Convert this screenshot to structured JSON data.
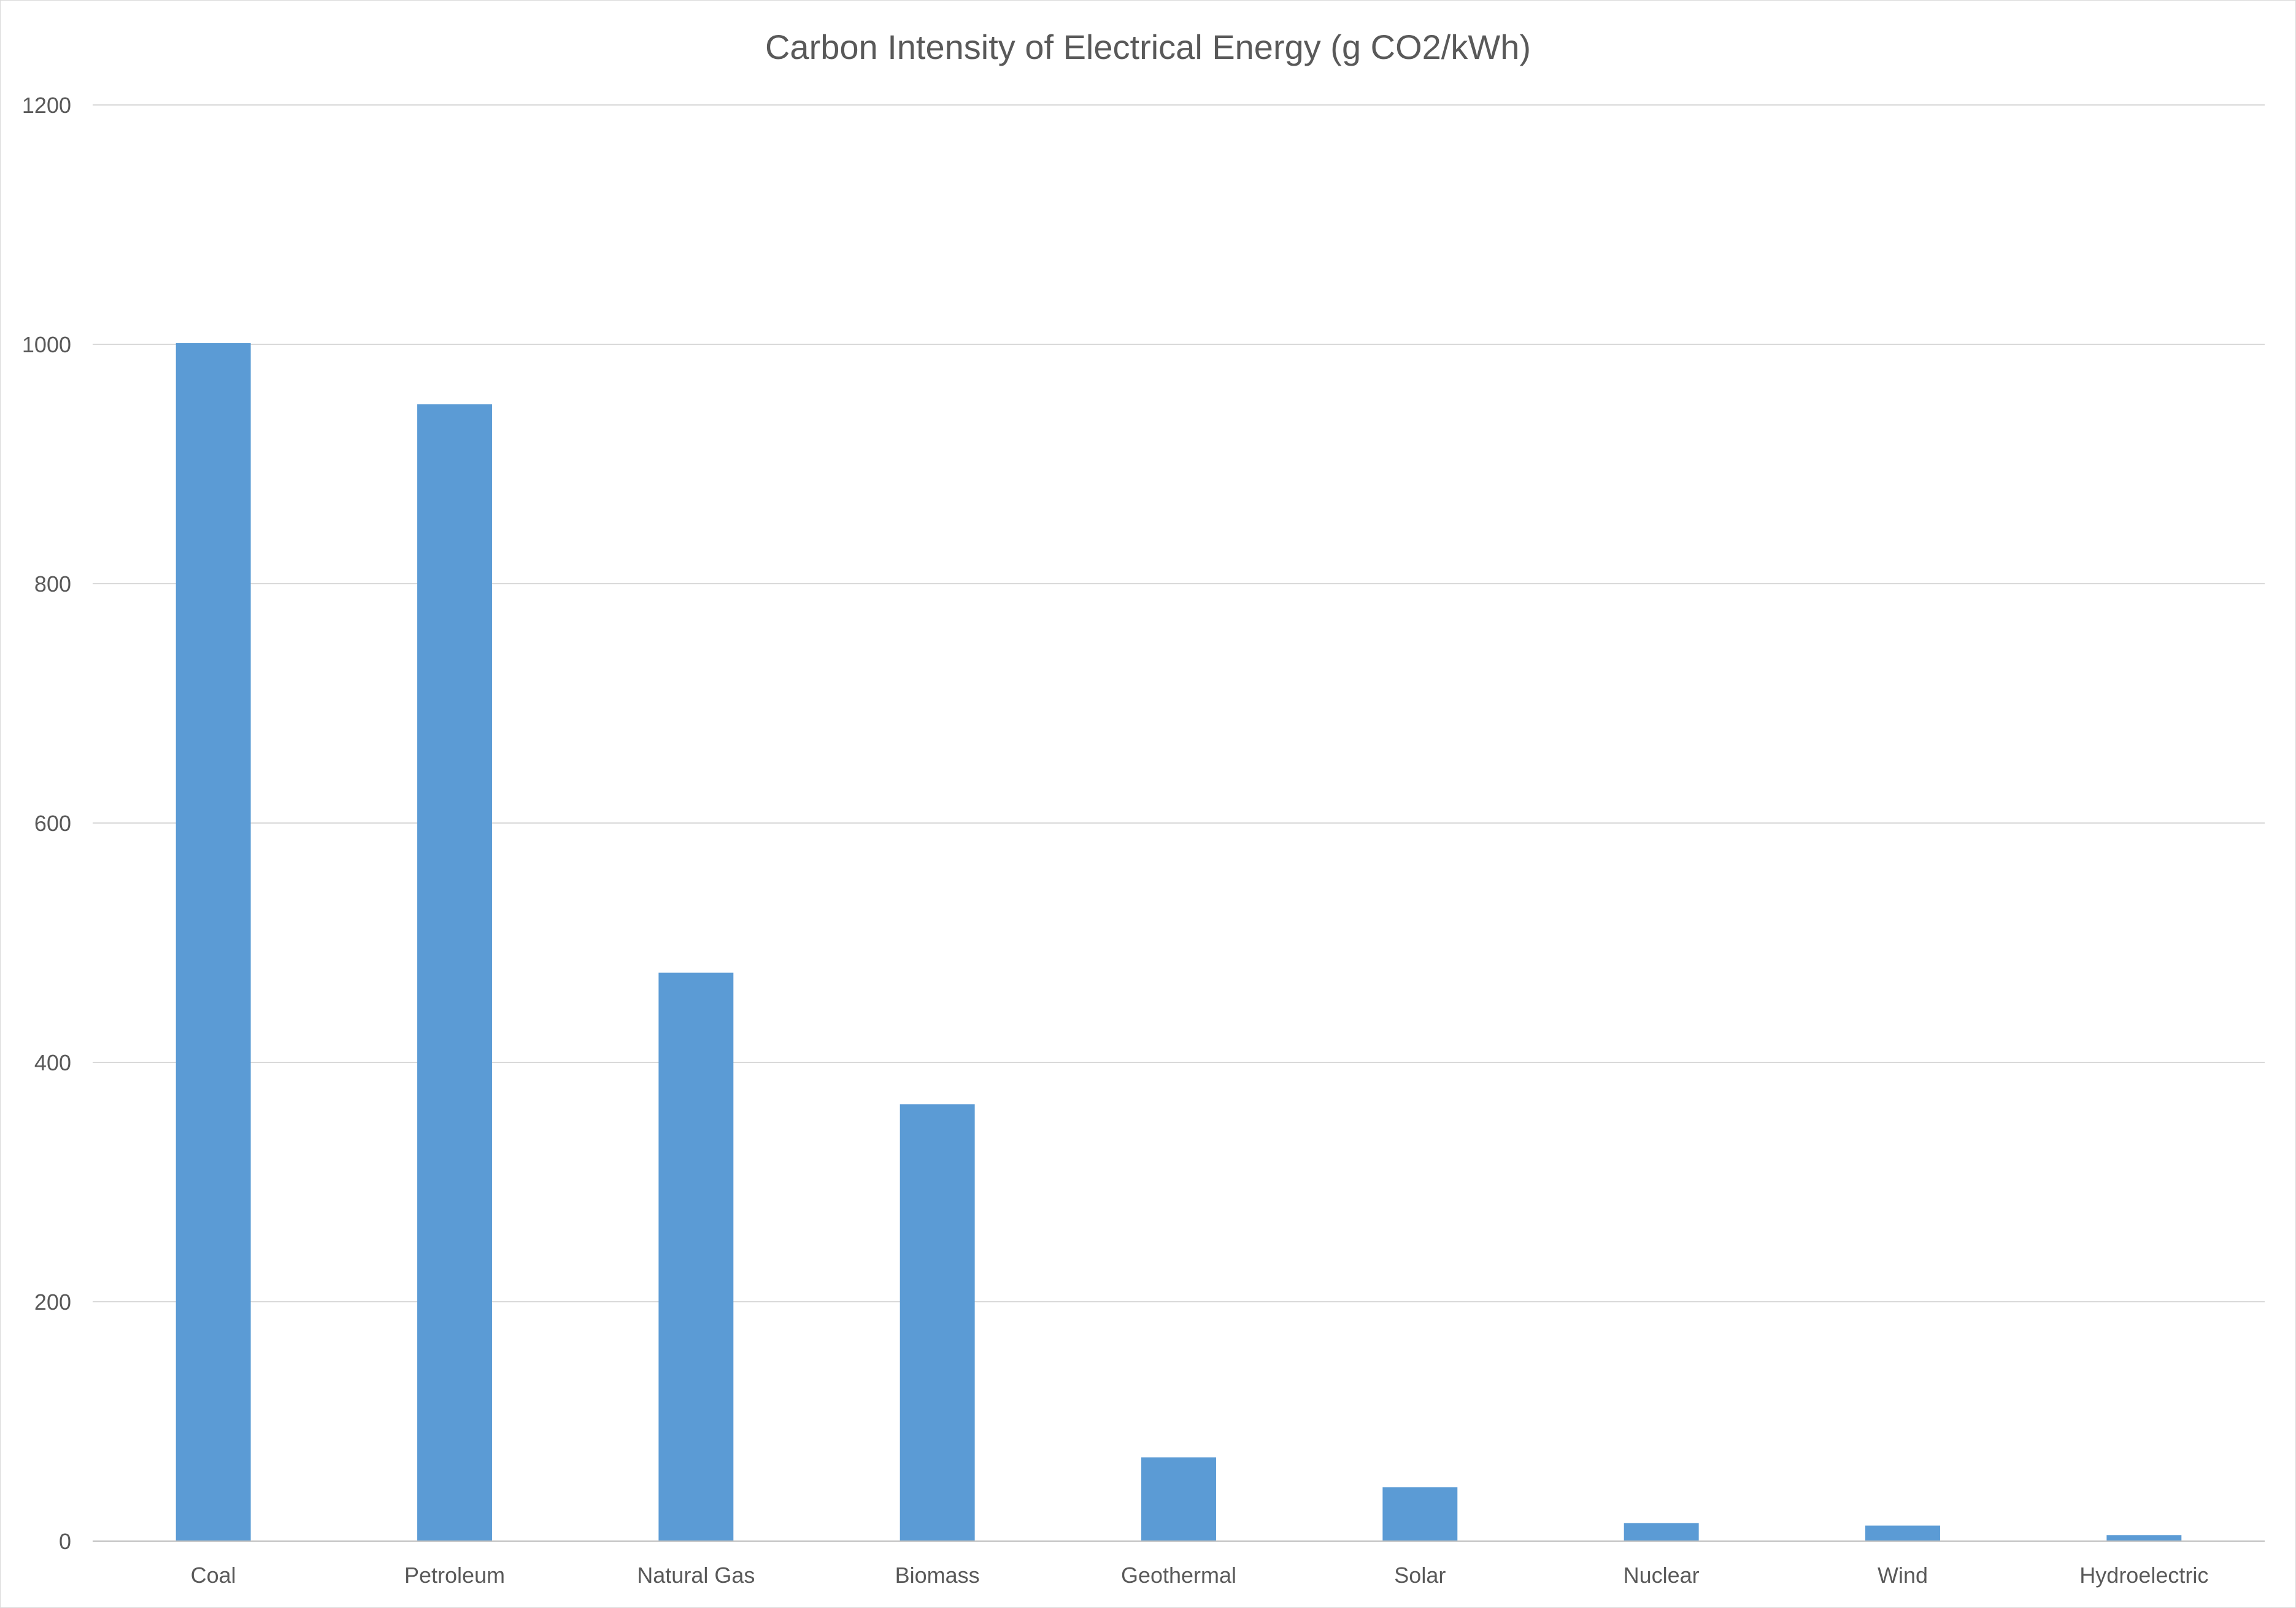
{
  "chart_data": {
    "type": "bar",
    "title": "Carbon Intensity of Electrical Energy (g CO2/kWh)",
    "xlabel": "",
    "ylabel": "",
    "categories": [
      "Coal",
      "Petroleum",
      "Natural Gas",
      "Biomass",
      "Geothermal",
      "Solar",
      "Nuclear",
      "Wind",
      "Hydroelectric"
    ],
    "values": [
      1001,
      950,
      475,
      365,
      70,
      45,
      15,
      13,
      5
    ],
    "ylim": [
      0,
      1200
    ],
    "yticks": [
      0,
      200,
      400,
      600,
      800,
      1000,
      1200
    ],
    "grid": true,
    "legend": "none",
    "bar_color": "#5b9bd5"
  }
}
